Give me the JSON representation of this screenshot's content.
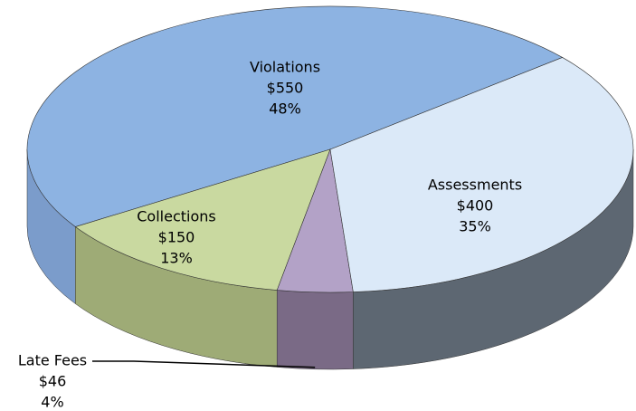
{
  "chart_data": {
    "type": "pie",
    "categories": [
      "Violations",
      "Collections",
      "Late Fees",
      "Assessments"
    ],
    "values": [
      550,
      150,
      46,
      400
    ],
    "value_labels": [
      "$550",
      "$150",
      "$46",
      "$400"
    ],
    "percent_labels": [
      "48%",
      "13%",
      "4%",
      "35%"
    ],
    "colors": [
      "#8db3e2",
      "#c9d9a0",
      "#b3a2c7",
      "#dbe9f8"
    ],
    "side_colors": [
      "#7b9ccb",
      "#9eab76",
      "#7a6a86",
      "#5d6772"
    ],
    "three_d": true
  }
}
